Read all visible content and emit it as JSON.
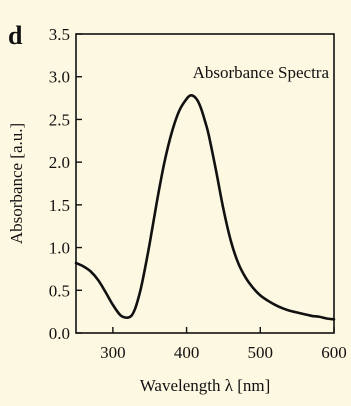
{
  "figure": {
    "panel_label": "d"
  },
  "colors": {
    "background": "#fdf8e1",
    "axis": "#111111",
    "line": "#111111"
  },
  "chart_data": {
    "type": "line",
    "title": "",
    "annotation": "Absorbance Spectra",
    "annotation_position": "top-right",
    "xlabel": "Wavelength λ [nm]",
    "ylabel": "Absorbance [a.u.]",
    "xlim": [
      250,
      600
    ],
    "ylim": [
      0,
      3.5
    ],
    "xticks": [
      300,
      400,
      500,
      600
    ],
    "xtick_labels": [
      "300",
      "400",
      "500",
      "600"
    ],
    "yticks": [
      0,
      0.5,
      1.0,
      1.5,
      2.0,
      2.5,
      3.0,
      3.5
    ],
    "ytick_labels": [
      "0.0",
      "0.5",
      "1.0",
      "1.5",
      "2.0",
      "2.5",
      "3.0",
      "3.5"
    ],
    "grid": false,
    "legend": null,
    "series": [
      {
        "x": [
          250,
          260,
          270,
          280,
          290,
          300,
          310,
          318,
          325,
          330,
          335,
          340,
          350,
          360,
          370,
          380,
          390,
          400,
          405,
          410,
          415,
          420,
          425,
          430,
          440,
          450,
          460,
          470,
          480,
          490,
          500,
          510,
          520,
          530,
          540,
          550,
          560,
          570,
          580,
          590,
          600
        ],
        "y": [
          0.82,
          0.78,
          0.72,
          0.62,
          0.48,
          0.33,
          0.21,
          0.18,
          0.2,
          0.28,
          0.42,
          0.6,
          1.05,
          1.55,
          2.0,
          2.35,
          2.6,
          2.74,
          2.78,
          2.77,
          2.72,
          2.62,
          2.48,
          2.32,
          1.9,
          1.45,
          1.08,
          0.82,
          0.65,
          0.53,
          0.44,
          0.38,
          0.33,
          0.29,
          0.26,
          0.24,
          0.22,
          0.2,
          0.19,
          0.17,
          0.16
        ]
      }
    ]
  }
}
